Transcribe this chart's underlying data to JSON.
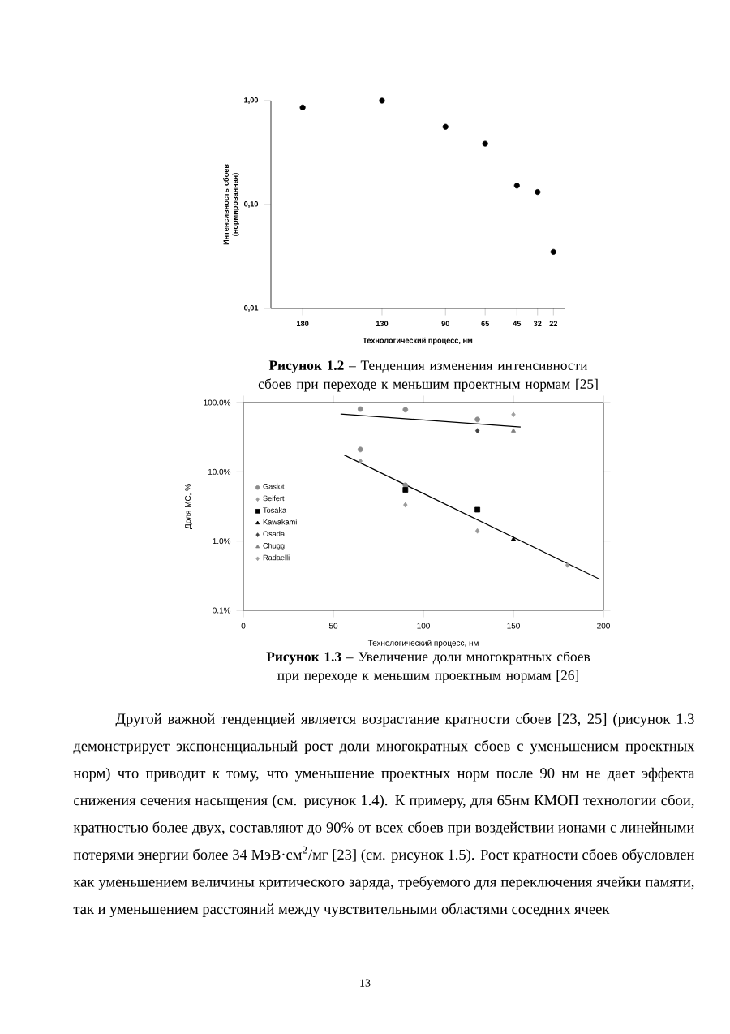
{
  "chart_data": [
    {
      "type": "scatter",
      "xlabel": "Технологический процесс, нм",
      "ylabel": "Интенсивность сбоев (нормированная)",
      "log": "y",
      "color": "#000000",
      "x": [
        180,
        130,
        90,
        65,
        45,
        32,
        22
      ],
      "values": [
        0.86,
        1.0,
        0.56,
        0.385,
        0.152,
        0.132,
        0.035
      ],
      "xlim": [
        200,
        15
      ],
      "xticks": [
        180,
        130,
        90,
        65,
        45,
        32,
        22
      ],
      "ylim": [
        0.01,
        1
      ],
      "yticks": [
        {
          "value": 0.01,
          "label": "0,01"
        },
        {
          "value": 0.1,
          "label": "0,10"
        },
        {
          "value": 1,
          "label": "1,00"
        }
      ],
      "annotations": [
        "**Рисунок 1.2** – Тенденция изменения интенсивности сбоев при переходе к меньшим проектным нормам [25]"
      ]
    },
    {
      "type": "scatter",
      "xlabel": "Технологический процесс, нм",
      "ylabel": "Доля МС, %",
      "log": "y",
      "legend": "left",
      "series": [
        {
          "name": "Gasiot",
          "color": "#8c8c8c",
          "marker": "circle",
          "x": [
            65,
            90,
            130,
            65,
            90
          ],
          "values": [
            80.5,
            79,
            57,
            21,
            6.4
          ]
        },
        {
          "name": "Seifert",
          "color": "#9a9a9a",
          "marker": "diamond",
          "x": [
            65,
            90,
            130,
            180
          ],
          "values": [
            14.3,
            3.33,
            1.4,
            0.45
          ]
        },
        {
          "name": "Tosaka",
          "color": "#000000",
          "marker": "square",
          "x": [
            90,
            130
          ],
          "values": [
            5.5,
            2.84
          ]
        },
        {
          "name": "Kawakami",
          "color": "#000000",
          "marker": "triangle",
          "x": [
            150
          ],
          "values": [
            1.06
          ]
        },
        {
          "name": "Osada",
          "color": "#404040",
          "marker": "diamond",
          "x": [
            130
          ],
          "values": [
            39.2
          ]
        },
        {
          "name": "Chugg",
          "color": "#808080",
          "marker": "triangle",
          "x": [
            150
          ],
          "values": [
            39
          ]
        },
        {
          "name": "Radaelli",
          "color": "#a0a0a0",
          "marker": "diamond",
          "x": [
            150
          ],
          "values": [
            67
          ]
        },
        {
          "type": "line",
          "color": "#000000",
          "x": [
            54,
            154
          ],
          "values": [
            68.4,
            44.4
          ]
        },
        {
          "type": "line",
          "color": "#000000",
          "x": [
            56,
            198
          ],
          "values": [
            17.5,
            0.28
          ]
        }
      ],
      "xlim": [
        0,
        200
      ],
      "xticks": [
        0,
        50,
        100,
        150,
        200
      ],
      "ylim": [
        0.1,
        100
      ],
      "yticks": [
        {
          "value": 0.1,
          "label": "0.1%"
        },
        {
          "value": 1,
          "label": "1.0%"
        },
        {
          "value": 10,
          "label": "10.0%"
        },
        {
          "value": 100,
          "label": "100.0%"
        }
      ],
      "annotations": [
        "**Рисунок 1.3** – Увеличение доли многократных сбоев при переходе к меньшим проектным нормам [26]",
        "Другой важной тенденцией является возрастание кратности сбоев [23, 25] (рисунок 1.3 демонстрирует экспоненциальный рост доли многократных сбоев с уменьшением проектных норм) что приводит к тому, что уменьшение проектных норм после 90 нм не дает эффекта снижения сечения насыщения (см. рисунок 1.4). К примеру, для 65нм КМОП технологии сбои, кратностью более двух, составляют до 90% от всех сбоев при воздействии ионами с линейными потерями энергии более 34 МэВ·см$^{2}$/мг [23] (см. рисунок 1.5). Рост кратности сбоев обусловлен как уменьшением величины критического заряда, требуемого для переключения ячейки памяти, так и уменьшением расстояний между чувствительными областями соседних ячеек",
        "13"
      ]
    }
  ]
}
